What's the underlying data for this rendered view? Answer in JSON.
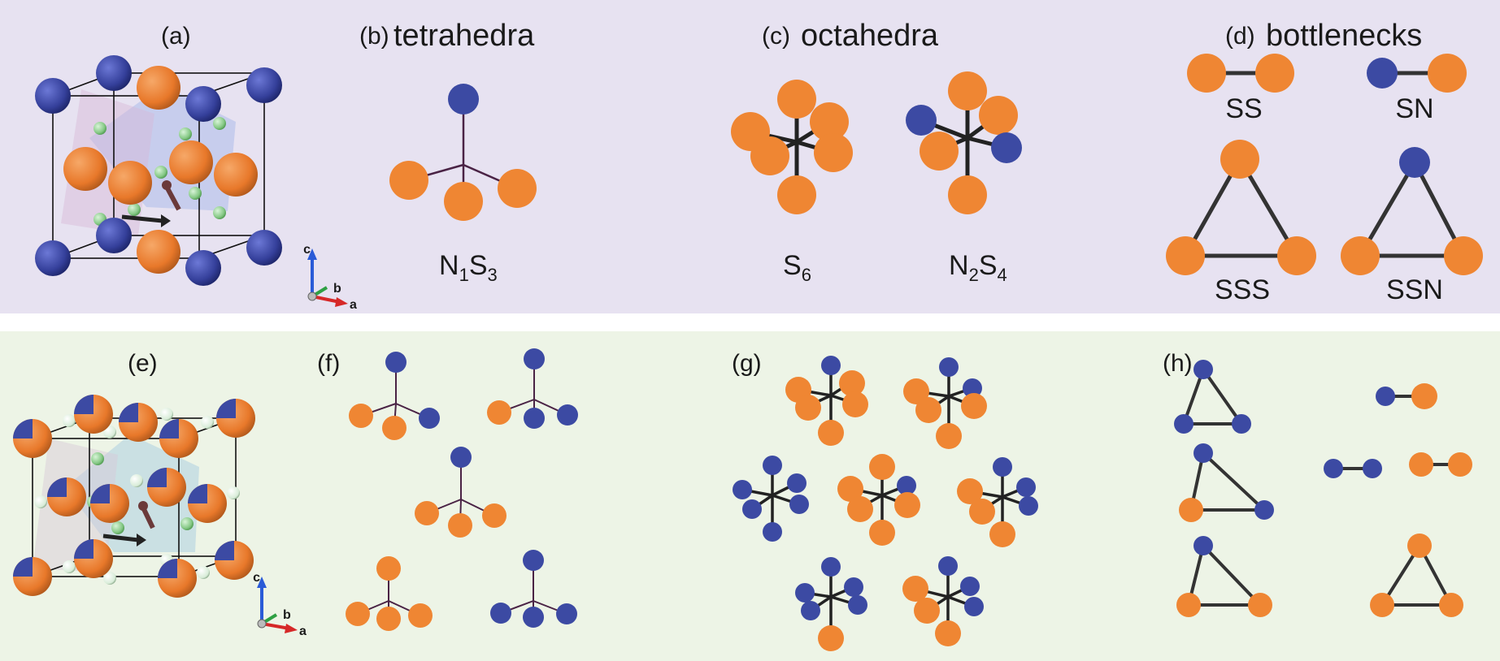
{
  "colors": {
    "top_panel_bg": "#e7e2f1",
    "bottom_panel_bg": "#edf4e6",
    "orange_atom": "#ef8633",
    "blue_atom": "#3c4aa3",
    "green_atom": "#8fd18f",
    "bond": "#2f2f2f",
    "tetra_bond": "#4a2345",
    "axis_c": "#2a5bd7",
    "axis_b": "#2ea043",
    "axis_a": "#d62828"
  },
  "top": {
    "a_label": "(a)",
    "b_label": "(b)",
    "b_title": "tetrahedra",
    "c_label": "(c)",
    "c_title": "octahedra",
    "d_label": "(d)",
    "d_title": "bottlenecks",
    "tetra_formula": {
      "n1": "N",
      "s1": "1",
      "n2": "S",
      "s2": "3"
    },
    "octa_formula_1": {
      "n1": "S",
      "s1": "6"
    },
    "octa_formula_2": {
      "n1": "N",
      "s1": "2",
      "n2": "S",
      "s2": "4"
    },
    "bottleneck_labels": [
      "SS",
      "SN",
      "SSS",
      "SSN"
    ]
  },
  "bottom": {
    "e_label": "(e)",
    "f_label": "(f)",
    "g_label": "(g)",
    "h_label": "(h)"
  },
  "axes": {
    "c": "c",
    "b": "b",
    "a": "a"
  }
}
